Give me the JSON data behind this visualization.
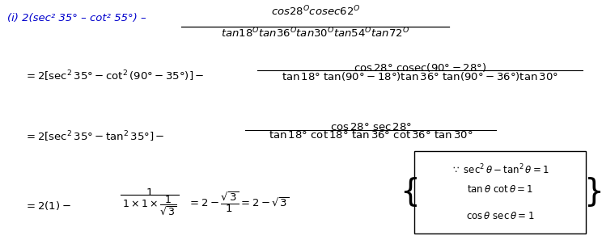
{
  "bg_color": "#ffffff",
  "fig_width": 7.44,
  "fig_height": 3.02,
  "dpi": 100,
  "line1_label_color": "#0000cc",
  "line1_label": "(i) 2(sec² 35° – cot² 55°) –",
  "title_numerator": "$cos28^O cosec62^O$",
  "title_denominator": "$tan18^O tan36^O tan30^O tan54^O tan72^O$",
  "line2": "= 2[sec² 35° – cot² (90° – 35°)] –",
  "line2_num": "$\\cos 28^\\circ\\, \\mathrm{cosec}(90^\\circ - 28^\\circ)$",
  "line2_den": "$\\tan 18^\\circ\\ \\tan(90^\\circ - 18^\\circ)\\tan 36^\\circ\\ \\tan(90^\\circ - 36^\\circ)\\tan 30^\\circ$",
  "line3": "= 2[sec² 35° – tan² 35°] –",
  "line3_num": "$\\cos 28^\\circ\\ \\sec 28^\\circ$",
  "line3_den": "$\\tan 18^\\circ\\ \\cot 18^\\circ\\ \\tan 36^\\circ\\ \\cot 36^\\circ\\ \\tan 30^\\circ$",
  "line4_left": "= 2(1) –",
  "line4_frac_num": "$1$",
  "line4_frac_den": "$1 \\times 1 \\times \\dfrac{1}{\\sqrt{3}}$",
  "line4_right": "$= 2 - \\dfrac{\\sqrt{3}}{1} = 2 - \\sqrt{3}$",
  "box_line1": "$\\because\\ \\sec^2\\theta - \\tan^2\\theta = 1$",
  "box_line2": "$\\tan\\theta\\ \\cot\\theta = 1$",
  "box_line3": "$\\cos\\theta\\ \\sec\\theta = 1$"
}
